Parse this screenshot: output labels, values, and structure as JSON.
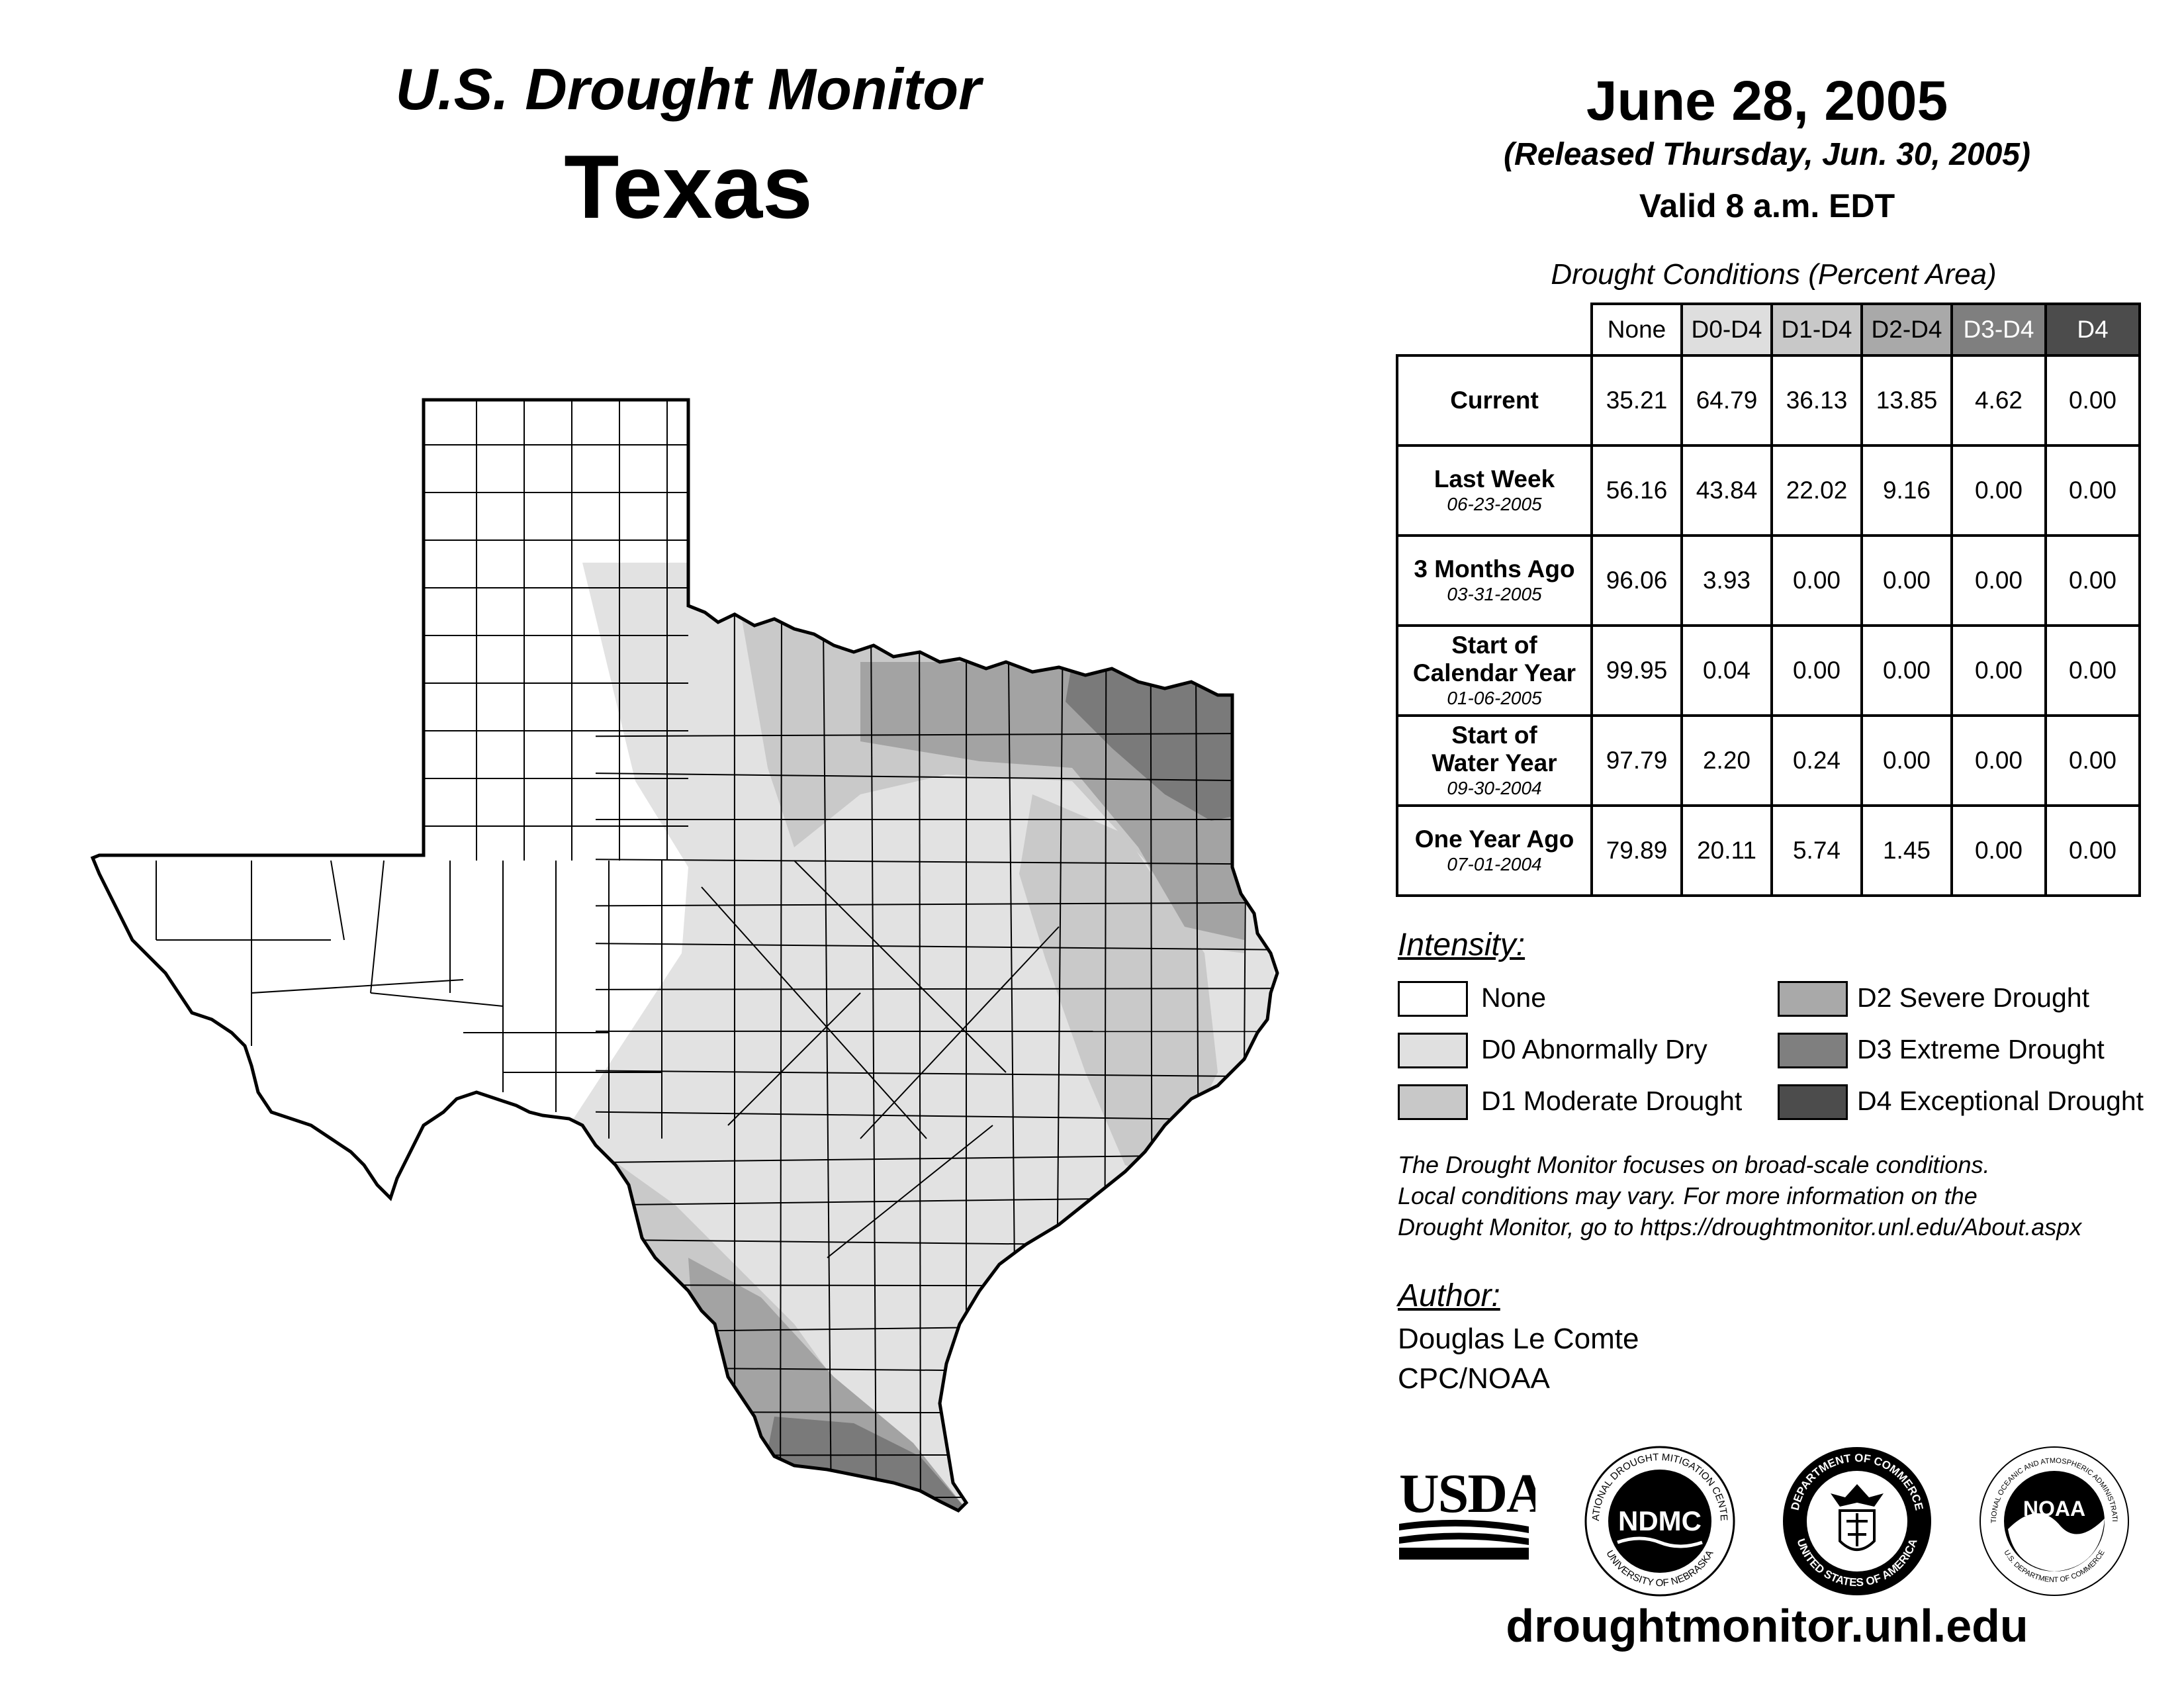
{
  "header": {
    "title": "U.S. Drought Monitor",
    "state": "Texas",
    "date": "June 28, 2005",
    "released": "(Released Thursday, Jun. 30, 2005)",
    "valid": "Valid 8 a.m. EDT"
  },
  "table": {
    "caption": "Drought Conditions (Percent Area)",
    "columns": [
      "None",
      "D0-D4",
      "D1-D4",
      "D2-D4",
      "D3-D4",
      "D4"
    ],
    "column_colors": [
      "#ffffff",
      "#dedede",
      "#c8c8c8",
      "#a9a9a9",
      "#7f7f7f",
      "#4c4c4c"
    ],
    "rows": [
      {
        "label": "Current",
        "label2": "",
        "date": "",
        "values": [
          "35.21",
          "64.79",
          "36.13",
          "13.85",
          "4.62",
          "0.00"
        ]
      },
      {
        "label": "Last Week",
        "label2": "",
        "date": "06-23-2005",
        "values": [
          "56.16",
          "43.84",
          "22.02",
          "9.16",
          "0.00",
          "0.00"
        ]
      },
      {
        "label": "3 Months Ago",
        "label2": "",
        "date": "03-31-2005",
        "values": [
          "96.06",
          "3.93",
          "0.00",
          "0.00",
          "0.00",
          "0.00"
        ]
      },
      {
        "label": "Start of",
        "label2": "Calendar Year",
        "date": "01-06-2005",
        "values": [
          "99.95",
          "0.04",
          "0.00",
          "0.00",
          "0.00",
          "0.00"
        ]
      },
      {
        "label": "Start of",
        "label2": "Water Year",
        "date": "09-30-2004",
        "values": [
          "97.79",
          "2.20",
          "0.24",
          "0.00",
          "0.00",
          "0.00"
        ]
      },
      {
        "label": "One Year Ago",
        "label2": "",
        "date": "07-01-2004",
        "values": [
          "79.89",
          "20.11",
          "5.74",
          "1.45",
          "0.00",
          "0.00"
        ]
      }
    ]
  },
  "legend": {
    "heading": "Intensity:",
    "items": [
      {
        "label": "None",
        "color": "#ffffff"
      },
      {
        "label": "D0 Abnormally Dry",
        "color": "#e0e0e0"
      },
      {
        "label": "D1 Moderate Drought",
        "color": "#c8c8c8"
      },
      {
        "label": "D2 Severe Drought",
        "color": "#a9a9a9"
      },
      {
        "label": "D3 Extreme Drought",
        "color": "#7f7f7f"
      },
      {
        "label": "D4 Exceptional Drought",
        "color": "#4c4c4c"
      }
    ]
  },
  "note": {
    "line1": "The Drought Monitor focuses on broad-scale conditions.",
    "line2": "Local conditions may vary. For more information on the",
    "line3": "Drought Monitor, go to https://droughtmonitor.unl.edu/About.aspx"
  },
  "author": {
    "heading": "Author:",
    "name": "Douglas Le Comte",
    "org": "CPC/NOAA"
  },
  "logos": {
    "usda": "USDA",
    "ndmc": "NDMC",
    "ndmc_ring": "NATIONAL DROUGHT MITIGATION CENTER",
    "ndmc_ring2": "UNIVERSITY OF NEBRASKA",
    "doc_ring": "DEPARTMENT OF COMMERCE",
    "doc_ring2": "UNITED STATES OF AMERICA",
    "noaa": "NOAA",
    "noaa_ring": "NATIONAL OCEANIC AND ATMOSPHERIC ADMINISTRATION",
    "noaa_ring2": "U.S. DEPARTMENT OF COMMERCE"
  },
  "footer": {
    "url": "droughtmonitor.unl.edu"
  },
  "map": {
    "shade_colors": {
      "none": "#ffffff",
      "d0": "#e2e2e2",
      "d1": "#c9c9c9",
      "d2": "#a3a3a3",
      "d3": "#7a7a7a"
    }
  }
}
